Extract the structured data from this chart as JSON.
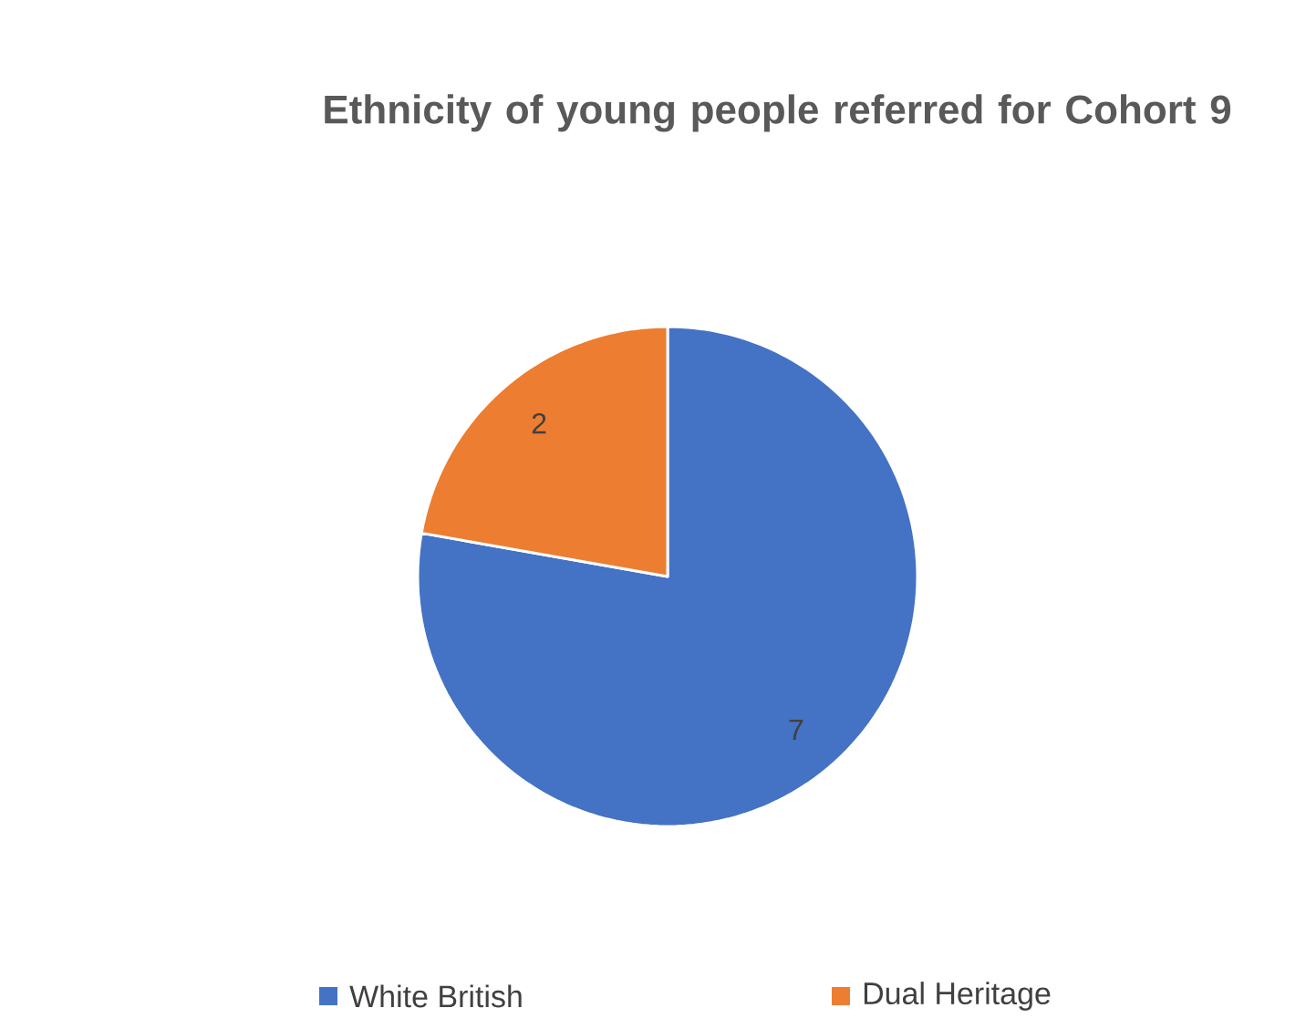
{
  "chart_data": {
    "type": "pie",
    "title": "Ethnicity of young people referred for Cohort 9",
    "categories": [
      "White British",
      "Dual Heritage"
    ],
    "values": [
      7,
      2
    ],
    "colors": [
      "#4472c4",
      "#ed7d31"
    ],
    "data_labels": true,
    "legend": "bottom"
  }
}
